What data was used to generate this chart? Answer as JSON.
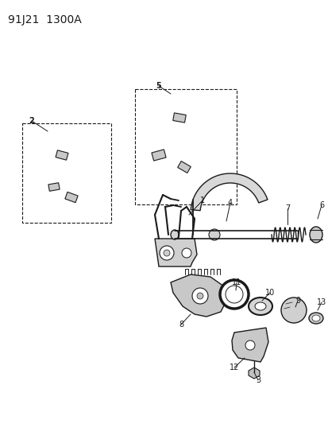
{
  "title": "91J21  1300A",
  "bg_color": "#ffffff",
  "title_fontsize": 10,
  "fig_width": 4.14,
  "fig_height": 5.33,
  "dpi": 100,
  "line_color": "#1a1a1a",
  "line_width": 1.0
}
